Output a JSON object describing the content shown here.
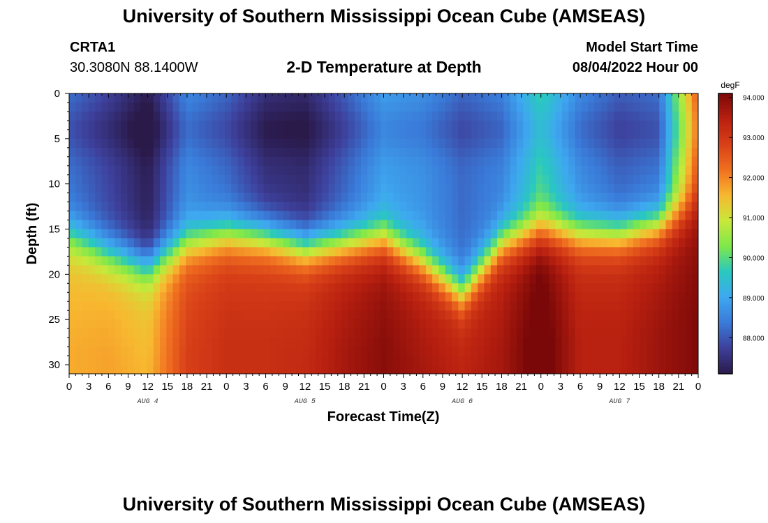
{
  "header": {
    "title": "University of Southern Mississippi Ocean Cube (AMSEAS)",
    "station_id": "CRTA1",
    "station_coords": "30.3080N  88.1400W",
    "chart_title": "2-D Temperature at Depth",
    "model_label": "Model Start Time",
    "model_time": "08/04/2022 Hour 00"
  },
  "footer": {
    "title": "University of Southern Mississippi Ocean Cube (AMSEAS)"
  },
  "colors": {
    "colormap": [
      "#2a1a4a",
      "#3d3f9a",
      "#3a7ad8",
      "#3ea8f0",
      "#29c8c0",
      "#7ee84a",
      "#c8e83a",
      "#f8b830",
      "#f07020",
      "#d84018",
      "#b82010",
      "#7a0808"
    ]
  },
  "chart_data": {
    "type": "heatmap",
    "title": "2-D Temperature at Depth",
    "xlabel": "Forecast Time(Z)",
    "ylabel": "Depth (ft)",
    "x_hours": [
      0,
      96
    ],
    "ylim": [
      0,
      31
    ],
    "x_tick_labels": [
      "0",
      "3",
      "6",
      "9",
      "12",
      "15",
      "18",
      "21",
      "0",
      "3",
      "6",
      "9",
      "12",
      "15",
      "18",
      "21",
      "0",
      "3",
      "6",
      "9",
      "12",
      "15",
      "18",
      "21",
      "0",
      "3",
      "6",
      "9",
      "12",
      "15",
      "18",
      "21",
      "0"
    ],
    "y_ticks": [
      0,
      5,
      10,
      15,
      20,
      25,
      30
    ],
    "day_labels": [
      {
        "label": "AUG 4",
        "hour": 12
      },
      {
        "label": "AUG 5",
        "hour": 36
      },
      {
        "label": "AUG 6",
        "hour": 60
      },
      {
        "label": "AUG 7",
        "hour": 84
      }
    ],
    "colorbar": {
      "unit": "degF",
      "min": 87.1,
      "max": 94.1,
      "tick_values": [
        94,
        93,
        92,
        91,
        90,
        89,
        88
      ],
      "tick_labels": [
        "94.000",
        "93.000",
        "92.000",
        "91.000",
        "90.000",
        "89.000",
        "88.000"
      ]
    },
    "depth_profile_samples": {
      "hours": [
        0,
        6,
        12,
        18,
        24,
        30,
        36,
        42,
        48,
        54,
        60,
        66,
        72,
        78,
        84,
        90,
        96
      ],
      "thermocline_depth_ft": [
        15.5,
        17.5,
        19.0,
        16.5,
        15.5,
        15.8,
        17.0,
        16.5,
        16.0,
        18.5,
        22.0,
        16.5,
        15.0,
        15.5,
        15.5,
        14.5,
        12.0
      ],
      "surface_temp_degF": [
        88.3,
        87.8,
        87.2,
        88.6,
        88.2,
        87.5,
        87.4,
        88.1,
        88.9,
        88.7,
        88.2,
        88.5,
        89.8,
        88.6,
        88.1,
        88.3,
        92.6
      ],
      "bottom_temp_degF": [
        91.4,
        91.5,
        91.3,
        92.6,
        92.9,
        92.9,
        93.0,
        93.4,
        93.7,
        93.4,
        93.2,
        93.4,
        94.1,
        93.2,
        93.2,
        93.5,
        93.8
      ]
    }
  }
}
